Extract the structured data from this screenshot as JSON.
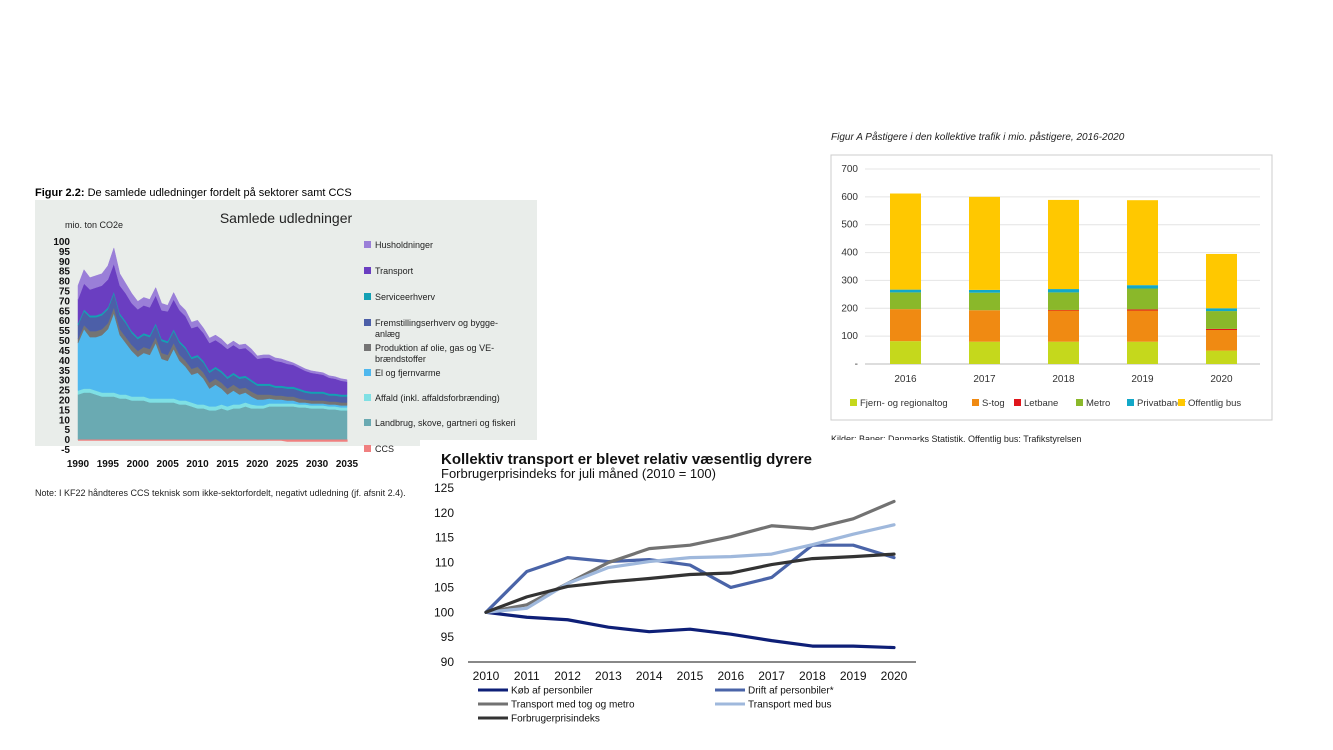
{
  "charts": {
    "emissions": {
      "caption_prefix": "Figur 2.2:",
      "caption_rest": " De samlede udledninger fordelt på sektorer samt CCS",
      "note": "Note: I KF22 håndteres CCS teknisk som ikke-sektorfordelt, negativt udledning (jf. afsnit 2.4).",
      "colors": {
        "caption": "#1aa0b8",
        "panel_bg": "#e9edea"
      }
    },
    "transit": {
      "source": "Kilder: Baner: Danmarks Statistik. Offentlig bus: Trafikstyrelsen"
    },
    "price": {}
  },
  "chart_data": [
    {
      "id": "emissions",
      "type": "area",
      "title": "Samlede udledninger",
      "ylabel": "mio. ton CO2e",
      "ylim": [
        -5,
        100
      ],
      "yticks": [
        100,
        95,
        90,
        85,
        80,
        75,
        70,
        65,
        60,
        55,
        50,
        45,
        40,
        35,
        30,
        25,
        20,
        15,
        10,
        5,
        0,
        -5
      ],
      "x": [
        1990,
        1991,
        1992,
        1993,
        1994,
        1995,
        1996,
        1997,
        1998,
        1999,
        2000,
        2001,
        2002,
        2003,
        2004,
        2005,
        2006,
        2007,
        2008,
        2009,
        2010,
        2011,
        2012,
        2013,
        2014,
        2015,
        2016,
        2017,
        2018,
        2019,
        2020,
        2021,
        2022,
        2023,
        2024,
        2025,
        2026,
        2027,
        2028,
        2029,
        2030,
        2031,
        2032,
        2033,
        2034,
        2035
      ],
      "xticks": [
        1990,
        1995,
        2000,
        2005,
        2010,
        2015,
        2020,
        2025,
        2030,
        2035
      ],
      "series": [
        {
          "name": "Landbrug, skove, gartneri og fiskeri",
          "color": "#6aaab2",
          "values": [
            23,
            24,
            24,
            23,
            22,
            22,
            22,
            21,
            21,
            20,
            20,
            20,
            19,
            19,
            19,
            19,
            19,
            18,
            18,
            17,
            16,
            16,
            15,
            15,
            16,
            15,
            16,
            16,
            17,
            16,
            16,
            16,
            17,
            17,
            17,
            17,
            17,
            16.5,
            16.5,
            16,
            16,
            16,
            15.5,
            15.5,
            15,
            15
          ]
        },
        {
          "name": "Affald (inkl. affaldsforbrænding)",
          "color": "#7fe0e4",
          "values": [
            2,
            2,
            2,
            2,
            2,
            2,
            2,
            2,
            2,
            2,
            2,
            2,
            2,
            2,
            2,
            2,
            2,
            2,
            2,
            2,
            2,
            2,
            2,
            2,
            2,
            2,
            2,
            2,
            2,
            2,
            1.5,
            1.5,
            1.5,
            1.5,
            1.5,
            1.5,
            1.5,
            1.5,
            1.5,
            1.5,
            1.5,
            1.5,
            1.5,
            1.5,
            1.5,
            1.5
          ]
        },
        {
          "name": "El og fjernvarme",
          "color": "#4fb8ee",
          "values": [
            24,
            30,
            26,
            27,
            29,
            32,
            40,
            30,
            26,
            23,
            20,
            22,
            22,
            28,
            20,
            19,
            25,
            20,
            17,
            14,
            16,
            13,
            9,
            11,
            8,
            6,
            7,
            5,
            5,
            4,
            3,
            3,
            2.5,
            2,
            2,
            1.5,
            1.5,
            1,
            1,
            1,
            1,
            1,
            1,
            1,
            1,
            1
          ]
        },
        {
          "name": "Produktion af olie, gas og VE-brændstoffer",
          "color": "#747474",
          "values": [
            2,
            2,
            3,
            3,
            3,
            3,
            3,
            3,
            3,
            3,
            3,
            3,
            3,
            3,
            3,
            3,
            3,
            3,
            3,
            3,
            3,
            3,
            3,
            3,
            3,
            3,
            3,
            3,
            2.5,
            2.5,
            2.5,
            2.5,
            2,
            2,
            2,
            2,
            2,
            2,
            1.5,
            1.5,
            1.5,
            1.5,
            1.5,
            1.5,
            1.5,
            1.5
          ]
        },
        {
          "name": "Fremstillingserhverv og bygge-anlæg",
          "color": "#4c5fa8",
          "values": [
            7,
            7,
            7,
            7,
            7,
            7,
            7,
            7,
            7,
            6,
            6,
            6,
            6,
            6,
            6,
            6,
            6,
            6,
            6,
            5,
            5,
            5,
            5,
            5,
            5,
            5,
            5,
            5,
            5,
            5,
            4.5,
            4.5,
            4.5,
            4,
            4,
            4,
            4,
            4,
            3.5,
            3.5,
            3.5,
            3.5,
            3,
            3,
            3,
            3
          ]
        },
        {
          "name": "Serviceerhverv",
          "color": "#13a0b4",
          "values": [
            1,
            1,
            1,
            1,
            1,
            1,
            1,
            1,
            1,
            1,
            1,
            1,
            1,
            1,
            1,
            1,
            1,
            1,
            1,
            1,
            1,
            1,
            1,
            1,
            1,
            1,
            1,
            1,
            1,
            1,
            1,
            1,
            1,
            1,
            1,
            1,
            1,
            1,
            1,
            1,
            1,
            1,
            1,
            1,
            1,
            1
          ]
        },
        {
          "name": "Transport",
          "color": "#6a3ec1",
          "values": [
            12,
            13,
            13,
            14,
            14,
            14,
            14,
            14,
            14,
            14,
            14,
            14,
            14,
            14,
            14.5,
            15,
            15,
            15.5,
            15.5,
            14.5,
            14.5,
            14,
            14,
            13.5,
            13.5,
            14,
            14,
            14,
            14,
            13.5,
            12.5,
            13,
            13,
            12.5,
            12,
            11.5,
            11,
            10.5,
            10,
            9.5,
            9,
            8.5,
            8,
            7.5,
            7,
            6.5
          ]
        },
        {
          "name": "Husholdninger",
          "color": "#9a7fd8",
          "values": [
            7,
            7,
            6,
            6,
            6,
            7,
            8,
            6,
            5,
            5,
            4,
            4,
            4,
            4,
            3.5,
            3,
            3.5,
            3,
            3,
            3,
            3,
            2.5,
            2.5,
            2.5,
            2.5,
            2,
            2,
            2,
            2,
            2,
            1.5,
            1.5,
            1.5,
            1.5,
            1.5,
            1.5,
            1,
            1,
            1,
            1,
            1,
            1,
            1,
            1,
            1,
            1
          ]
        },
        {
          "name": "CCS",
          "color": "#f08080",
          "values": [
            0,
            0,
            0,
            0,
            0,
            0,
            0,
            0,
            0,
            0,
            0,
            0,
            0,
            0,
            0,
            0,
            0,
            0,
            0,
            0,
            0,
            0,
            0,
            0,
            0,
            0,
            0,
            0,
            0,
            0,
            0,
            0,
            0,
            0,
            0,
            -0.5,
            -0.5,
            -0.5,
            -0.5,
            -0.5,
            -0.5,
            -0.5,
            -0.5,
            -0.5,
            -0.5,
            -0.5
          ]
        }
      ],
      "legend_order": [
        "Husholdninger",
        "Transport",
        "Serviceerhverv",
        "Fremstillingserhverv og bygge-anlæg",
        "Produktion af olie, gas og VE-brændstoffer",
        "El og fjernvarme",
        "Affald (inkl. affaldsforbrænding)",
        "Landbrug, skove, gartneri og fiskeri",
        "CCS"
      ],
      "legend_placement": "right"
    },
    {
      "id": "transit",
      "type": "bar",
      "stacked": true,
      "title": "Figur A Påstigere i den kollektive trafik i mio. påstigere, 2016-2020",
      "categories": [
        "2016",
        "2017",
        "2018",
        "2019",
        "2020"
      ],
      "ylim": [
        0,
        700
      ],
      "yticks": [
        0,
        100,
        200,
        300,
        400,
        500,
        600,
        700
      ],
      "grid": true,
      "series": [
        {
          "name": "Fjern- og regionaltog",
          "color": "#c5d81c",
          "values": [
            82,
            80,
            80,
            80,
            48
          ]
        },
        {
          "name": "S-tog",
          "color": "#f08a12",
          "values": [
            115,
            113,
            112,
            112,
            74
          ]
        },
        {
          "name": "Letbane",
          "color": "#e0161c",
          "values": [
            0,
            0,
            2,
            4,
            4
          ]
        },
        {
          "name": "Metro",
          "color": "#8ab82a",
          "values": [
            60,
            63,
            63,
            75,
            64
          ]
        },
        {
          "name": "Privatbaner",
          "color": "#12a8c8",
          "values": [
            10,
            10,
            12,
            12,
            10
          ]
        },
        {
          "name": "Offentlig bus",
          "color": "#ffc800",
          "values": [
            345,
            334,
            320,
            305,
            195
          ]
        }
      ],
      "legend_placement": "bottom"
    },
    {
      "id": "price",
      "type": "line",
      "title": "Kollektiv transport er blevet relativ væsentlig dyrere",
      "subtitle": "Forbrugerprisindeks for juli måned (2010 = 100)",
      "x": [
        2010,
        2011,
        2012,
        2013,
        2014,
        2015,
        2016,
        2017,
        2018,
        2019,
        2020
      ],
      "ylim": [
        90,
        125
      ],
      "yticks": [
        90,
        95,
        100,
        105,
        110,
        115,
        120,
        125
      ],
      "series": [
        {
          "name": "Køb af personbiler",
          "color": "#0e1f77",
          "values": [
            100,
            99.0,
            98.5,
            97.0,
            96.1,
            96.6,
            95.6,
            94.3,
            93.2,
            93.2,
            92.9
          ]
        },
        {
          "name": "Drift af personbiler*",
          "color": "#4a64a8",
          "values": [
            100,
            108.2,
            111.0,
            110.2,
            110.6,
            109.5,
            105.0,
            107.0,
            113.5,
            113.5,
            111.0
          ]
        },
        {
          "name": "Transport med tog og metro",
          "color": "#727272",
          "values": [
            100,
            101.5,
            105.8,
            110.0,
            112.8,
            113.5,
            115.2,
            117.4,
            116.8,
            118.8,
            122.3
          ]
        },
        {
          "name": "Transport med bus",
          "color": "#9fb8dc",
          "values": [
            100,
            100.8,
            105.8,
            109.0,
            110.2,
            111.0,
            111.2,
            111.7,
            113.6,
            115.7,
            117.6
          ]
        },
        {
          "name": "Forbrugerprisindeks",
          "color": "#333333",
          "values": [
            100,
            103.1,
            105.2,
            106.1,
            106.8,
            107.6,
            107.9,
            109.6,
            110.8,
            111.2,
            111.7
          ]
        }
      ],
      "legend_placement": "bottom"
    }
  ]
}
